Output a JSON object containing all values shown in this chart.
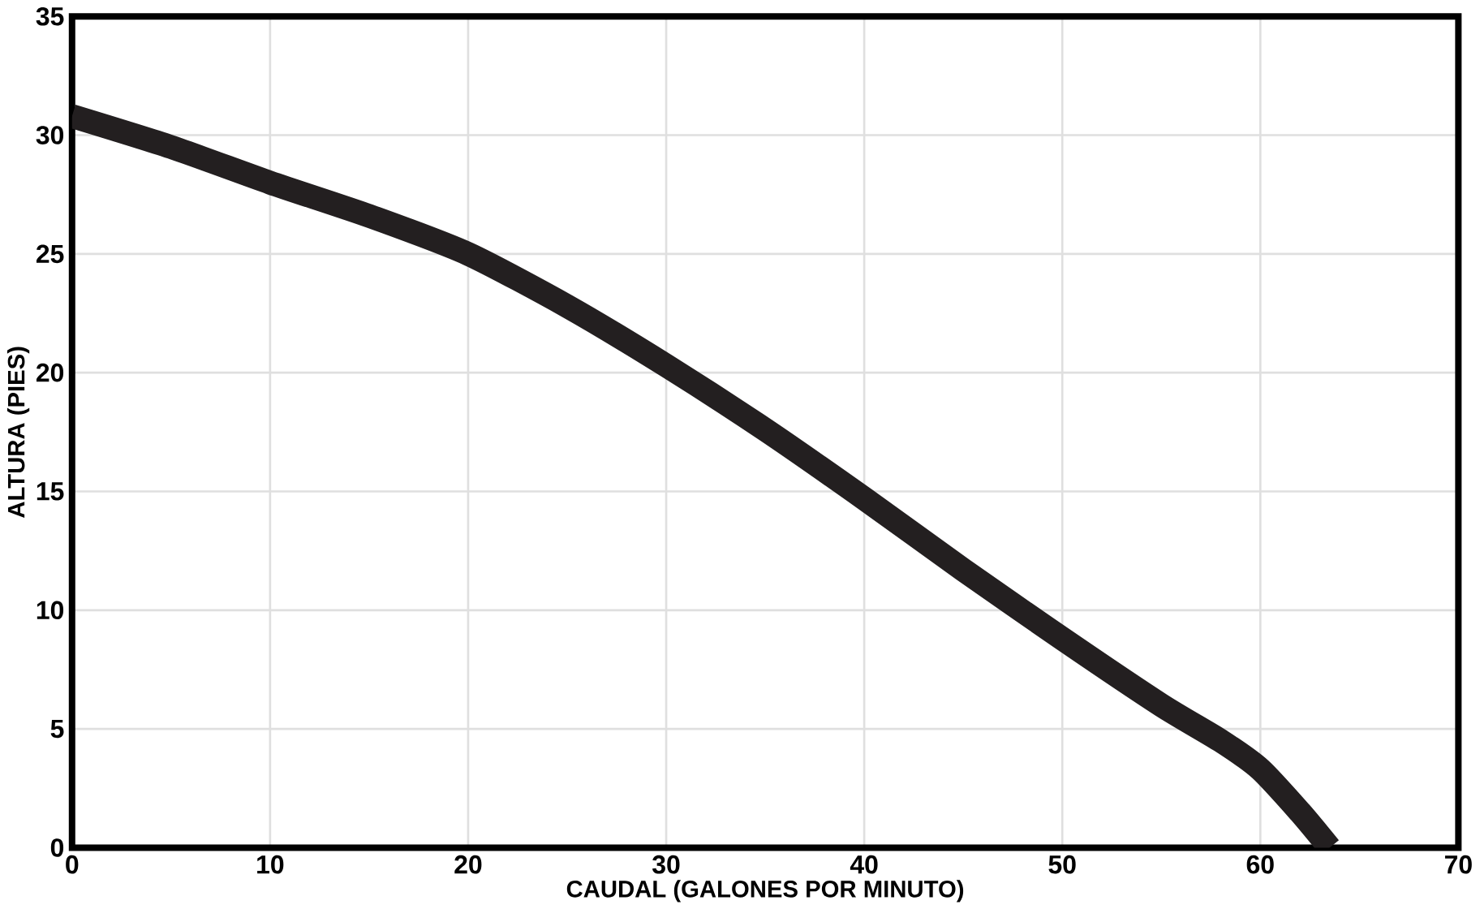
{
  "chart_data": {
    "type": "line",
    "xlabel": "CAUDAL (GALONES POR MINUTO)",
    "ylabel": "ALTURA (PIES)",
    "xlim": [
      0,
      70
    ],
    "xticks": [
      0,
      10,
      20,
      30,
      40,
      50,
      60,
      70
    ],
    "ylim": [
      0,
      35
    ],
    "yticks": [
      0,
      5,
      10,
      15,
      20,
      25,
      30,
      35
    ],
    "grid": true,
    "marker": "none",
    "line_style": "solid",
    "series": [
      {
        "color": "#231f20",
        "x": [
          0,
          5,
          10,
          15,
          20,
          25,
          30,
          35,
          40,
          45,
          50,
          55,
          58,
          60,
          62,
          63.5
        ],
        "values": [
          30.8,
          29.5,
          28,
          26.6,
          25,
          22.8,
          20.3,
          17.6,
          14.7,
          11.7,
          8.8,
          6,
          4.5,
          3.3,
          1.5,
          0
        ]
      }
    ]
  }
}
